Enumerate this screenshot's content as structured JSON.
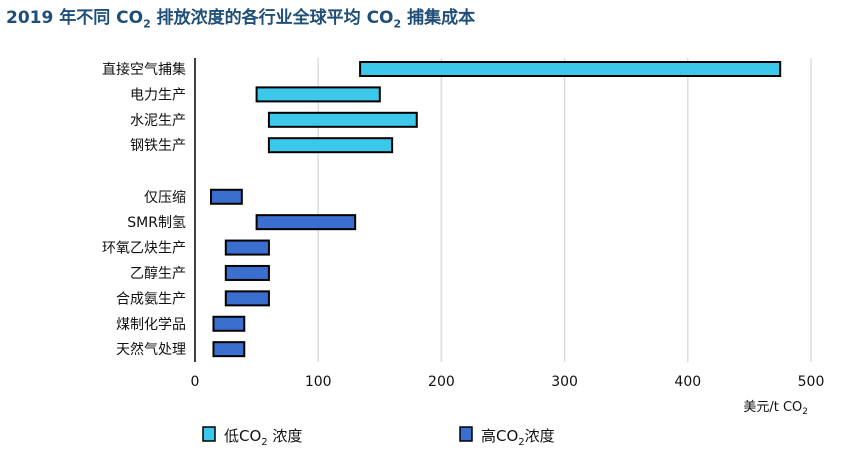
{
  "title_main": "2019 年不同 CO",
  "title_sub1": "2",
  "title_mid": " 排放浓度的各行业全球平均 CO",
  "title_sub2": "2",
  "title_end": " 捕集成本",
  "unit_label": "美元/t CO",
  "unit_sub": "2",
  "legend": {
    "low_label": "低CO",
    "low_sub": "2",
    "low_end": " 浓度",
    "high_label": "高CO",
    "high_sub": "2",
    "high_end": "浓度"
  },
  "colors": {
    "low": "#3cc8ea",
    "high": "#3a6fd0",
    "title": "#1f4e79",
    "grid": "#dcdcdc"
  },
  "chart_data": {
    "type": "bar",
    "orientation": "horizontal-range",
    "xlabel": "美元/t CO2",
    "xlim": [
      0,
      500
    ],
    "xticks": [
      0,
      100,
      200,
      300,
      400,
      500
    ],
    "grid": true,
    "legend_position": "bottom",
    "series": [
      {
        "name": "低CO2 浓度",
        "group": "low",
        "items": [
          {
            "category": "直接空气捕集",
            "min": 134,
            "max": 475
          },
          {
            "category": "电力生产",
            "min": 50,
            "max": 150
          },
          {
            "category": "水泥生产",
            "min": 60,
            "max": 180
          },
          {
            "category": "钢铁生产",
            "min": 60,
            "max": 160
          }
        ]
      },
      {
        "name": "高CO2浓度",
        "group": "high",
        "items": [
          {
            "category": "仅压缩",
            "min": 13,
            "max": 38
          },
          {
            "category": "SMR制氢",
            "min": 50,
            "max": 130
          },
          {
            "category": "环氧乙炔生产",
            "min": 25,
            "max": 60
          },
          {
            "category": "乙醇生产",
            "min": 25,
            "max": 60
          },
          {
            "category": "合成氨生产",
            "min": 25,
            "max": 60
          },
          {
            "category": "煤制化学品",
            "min": 15,
            "max": 40
          },
          {
            "category": "天然气处理",
            "min": 15,
            "max": 40
          }
        ]
      }
    ]
  }
}
